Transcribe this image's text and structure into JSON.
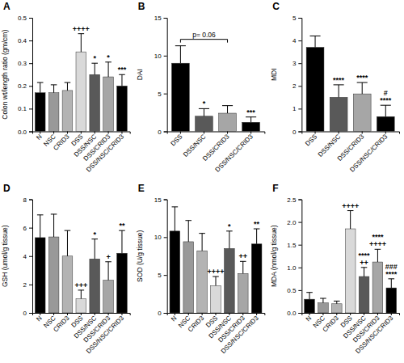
{
  "chart_data": [
    {
      "type": "bar",
      "title": "A",
      "y_label": "Colon wt/length ratio (gm/cm)",
      "categories": [
        "N",
        "NSC",
        "CRID3",
        "DSS",
        "DSS/NSC",
        "DSS/CRID3",
        "DSS/NSC/CRID3"
      ],
      "values": [
        0.17,
        0.17,
        0.18,
        0.35,
        0.25,
        0.24,
        0.2
      ],
      "errors": [
        0.045,
        0.035,
        0.035,
        0.08,
        0.05,
        0.065,
        0.05
      ],
      "colors": [
        "#000000",
        "#999999",
        "#b3b3b3",
        "#d9d9d9",
        "#595959",
        "#a6a6a6",
        "#000000"
      ],
      "annotations": [
        null,
        null,
        null,
        [
          "++++"
        ],
        [
          "*"
        ],
        [
          "*"
        ],
        [
          "***"
        ]
      ],
      "ylim": [
        0,
        0.5
      ],
      "yticks": [
        {
          "value": 0,
          "label": "0.0"
        },
        0.1,
        0.2,
        0.3,
        0.4,
        0.5
      ]
    },
    {
      "type": "bar",
      "title": "B",
      "y_label": "DAI",
      "categories": [
        "DSS",
        "DSS/NSC",
        "DSS/CRID3",
        "DSS/NSC/CRID3"
      ],
      "values": [
        9,
        2,
        2.4,
        1.2
      ],
      "errors": [
        2.3,
        1,
        1,
        0.7
      ],
      "colors": [
        "#000000",
        "#595959",
        "#a6a6a6",
        "#000000"
      ],
      "annotations": [
        null,
        [
          "*"
        ],
        null,
        [
          "***"
        ]
      ],
      "comparison": {
        "categories": [
          "DSS",
          "DSS/CRID3"
        ],
        "label": "p= 0.06"
      },
      "ylim": [
        0,
        15
      ],
      "yticks": [
        0,
        5,
        10,
        15
      ]
    },
    {
      "type": "bar",
      "title": "C",
      "y_label": "MDI",
      "categories": [
        "DSS",
        "DSS/NSC",
        "DSS/CRID3",
        "DSS/NSC/CRID3"
      ],
      "values": [
        3.7,
        1.5,
        1.65,
        0.65
      ],
      "errors": [
        0.5,
        0.55,
        0.5,
        0.5
      ],
      "colors": [
        "#000000",
        "#595959",
        "#a6a6a6",
        "#000000"
      ],
      "annotations": [
        null,
        [
          "****"
        ],
        [
          "****"
        ],
        [
          "#",
          "****"
        ]
      ],
      "ylim": [
        0,
        5
      ],
      "yticks": [
        0,
        1,
        2,
        3,
        4,
        5
      ]
    },
    {
      "type": "bar",
      "title": "D",
      "y_label": "GSH (umol/g tissue)",
      "categories": [
        "N",
        "NSC",
        "CRID3",
        "DSS",
        "DSS/NSC",
        "DSS/CRID3",
        "DSS/NSC/CRID3"
      ],
      "values": [
        5.3,
        5.35,
        4.0,
        1.0,
        3.8,
        2.3,
        4.2
      ],
      "errors": [
        1.6,
        1.6,
        1.8,
        0.6,
        1.4,
        1.3,
        1.6
      ],
      "colors": [
        "#000000",
        "#999999",
        "#b3b3b3",
        "#d9d9d9",
        "#595959",
        "#a6a6a6",
        "#000000"
      ],
      "annotations": [
        null,
        null,
        null,
        [
          "+++"
        ],
        [
          "*"
        ],
        [
          "+"
        ],
        [
          "**"
        ]
      ],
      "ylim": [
        0,
        8
      ],
      "yticks": [
        0,
        2,
        4,
        6,
        8
      ]
    },
    {
      "type": "bar",
      "title": "E",
      "y_label": "SOD (U/g tissue)",
      "categories": [
        "N",
        "NSC",
        "CRID3",
        "DSS",
        "DSS/NSC",
        "DSS/CRID3",
        "DSS/NSC/CRID3"
      ],
      "values": [
        10.8,
        9.4,
        8.2,
        3.6,
        8.5,
        5.2,
        9.1
      ],
      "errors": [
        3.2,
        2.8,
        2.3,
        1.2,
        2.3,
        1.6,
        2.0
      ],
      "colors": [
        "#000000",
        "#999999",
        "#b3b3b3",
        "#d9d9d9",
        "#595959",
        "#a6a6a6",
        "#000000"
      ],
      "annotations": [
        null,
        null,
        null,
        [
          "++++"
        ],
        [
          "*"
        ],
        [
          "++"
        ],
        [
          "**"
        ]
      ],
      "ylim": [
        0,
        15
      ],
      "yticks": [
        0,
        5,
        10,
        15
      ]
    },
    {
      "type": "bar",
      "title": "F",
      "y_label": "MDA (nmol/g tissue)",
      "categories": [
        "N",
        "NSC",
        "CRID3",
        "DSS",
        "DSS/NSC",
        "DSS/CRID3",
        "DSS/NSC/CRID3"
      ],
      "values": [
        0.3,
        0.22,
        0.2,
        1.85,
        0.8,
        1.12,
        0.55
      ],
      "errors": [
        0.15,
        0.1,
        0.06,
        0.4,
        0.2,
        0.28,
        0.2
      ],
      "colors": [
        "#000000",
        "#999999",
        "#b3b3b3",
        "#d9d9d9",
        "#595959",
        "#a6a6a6",
        "#000000"
      ],
      "annotations": [
        null,
        null,
        null,
        [
          "++++"
        ],
        [
          "****",
          "++"
        ],
        [
          "****",
          "++++"
        ],
        [
          "###",
          "****"
        ]
      ],
      "ylim": [
        0,
        2.5
      ],
      "yticks": [
        {
          "value": 0,
          "label": "0.0"
        },
        0.5,
        {
          "value": 1,
          "label": "1.0"
        },
        1.5,
        {
          "value": 2,
          "label": "2.0"
        },
        2.5
      ]
    }
  ]
}
